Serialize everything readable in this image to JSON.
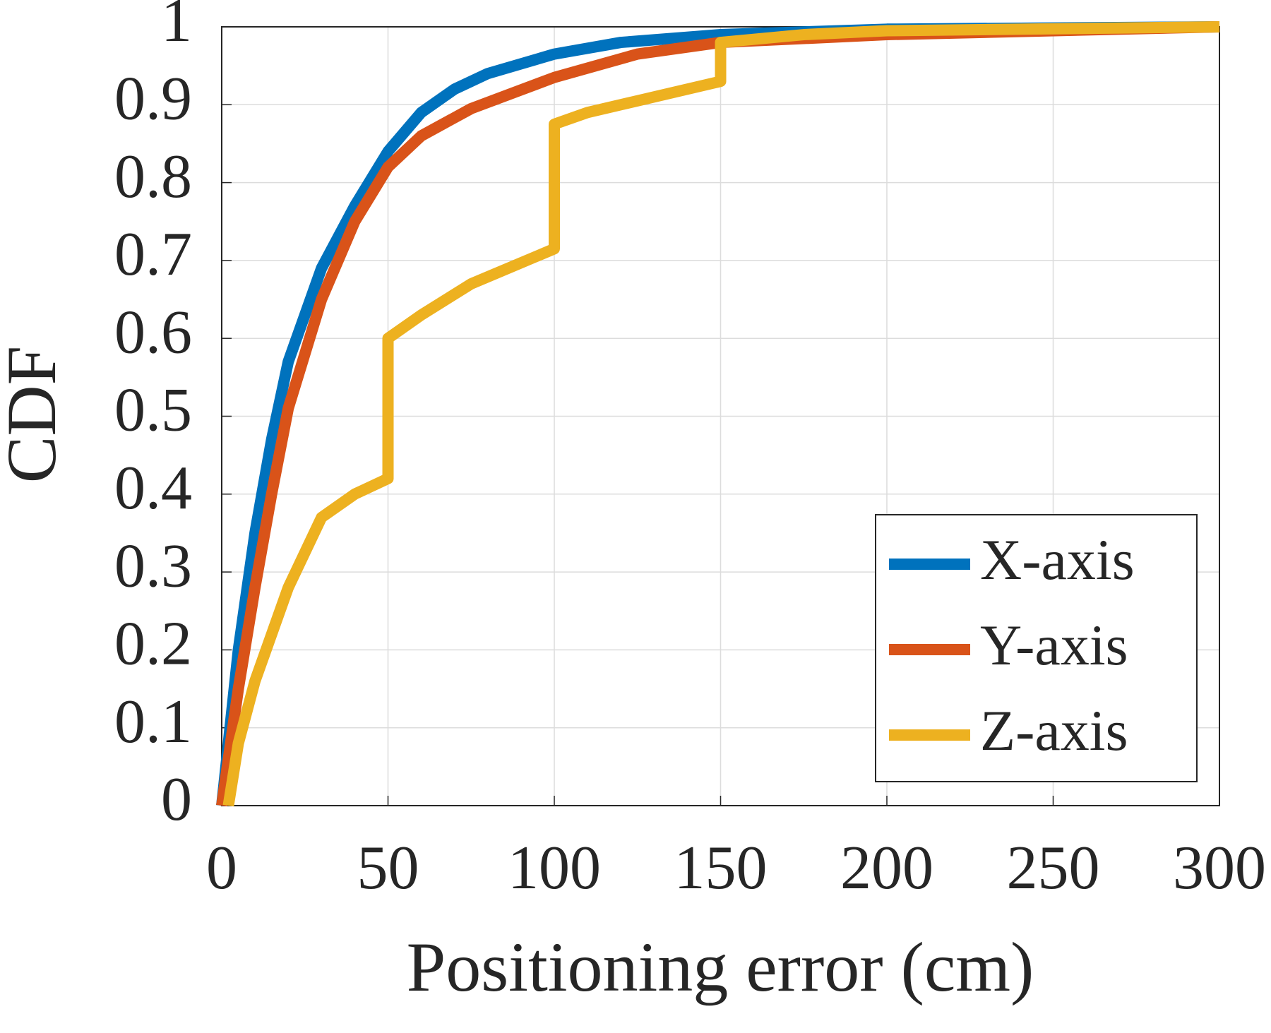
{
  "chart_data": {
    "type": "line",
    "xlabel": "Positioning error (cm)",
    "ylabel": "CDF",
    "xlim": [
      0,
      300
    ],
    "xticks": [
      0,
      50,
      100,
      150,
      200,
      250,
      300
    ],
    "ylim": [
      0,
      1
    ],
    "yticks": [
      0,
      0.1,
      0.2,
      0.3,
      0.4,
      0.5,
      0.6,
      0.7,
      0.8,
      0.9,
      1
    ],
    "grid": true,
    "legend": "lower right",
    "series": [
      {
        "name": "X-axis",
        "color": "#0072BD",
        "x": [
          0,
          5,
          10,
          15,
          20,
          30,
          40,
          50,
          60,
          70,
          80,
          100,
          120,
          150,
          200,
          300
        ],
        "values": [
          0,
          0.2,
          0.35,
          0.47,
          0.57,
          0.69,
          0.77,
          0.84,
          0.89,
          0.92,
          0.94,
          0.965,
          0.98,
          0.99,
          0.997,
          1
        ]
      },
      {
        "name": "Y-axis",
        "color": "#D95319",
        "x": [
          0,
          5,
          10,
          15,
          20,
          30,
          40,
          50,
          60,
          75,
          100,
          125,
          150,
          200,
          300
        ],
        "values": [
          0,
          0.15,
          0.28,
          0.4,
          0.51,
          0.65,
          0.75,
          0.82,
          0.86,
          0.895,
          0.935,
          0.965,
          0.98,
          0.99,
          1
        ]
      },
      {
        "name": "Z-axis",
        "color": "#EDB120",
        "x": [
          2,
          5,
          10,
          20,
          30,
          40,
          50,
          50,
          60,
          75,
          100,
          100,
          110,
          125,
          150,
          150,
          175,
          200,
          300
        ],
        "values": [
          0,
          0.08,
          0.16,
          0.28,
          0.37,
          0.4,
          0.42,
          0.6,
          0.63,
          0.67,
          0.715,
          0.875,
          0.89,
          0.905,
          0.93,
          0.98,
          0.99,
          0.995,
          1
        ]
      }
    ]
  }
}
